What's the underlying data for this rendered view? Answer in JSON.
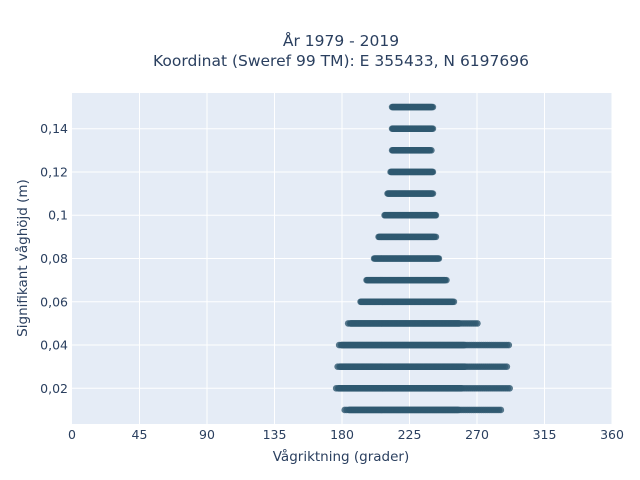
{
  "chart_data": {
    "type": "scatter",
    "title_lines": [
      "År 1979 - 2019",
      "Koordinat (Sweref 99 TM): E 355433, N 6197696"
    ],
    "xlabel": "Vågriktning (grader)",
    "ylabel": "Signifikant våghöjd (m)",
    "xlim": [
      0,
      360
    ],
    "ylim": [
      0.0035,
      0.1565
    ],
    "x_ticks": [
      0,
      45,
      90,
      135,
      180,
      225,
      270,
      315,
      360
    ],
    "x_tick_labels": [
      "0",
      "45",
      "90",
      "135",
      "180",
      "225",
      "270",
      "315",
      "360"
    ],
    "y_ticks": [
      0.02,
      0.04,
      0.06,
      0.08,
      0.1,
      0.12,
      0.14
    ],
    "y_tick_labels": [
      "0,02",
      "0,04",
      "0,06",
      "0,08",
      "0,1",
      "0,12",
      "0,14"
    ],
    "grid": true,
    "marker_color": "#2f5970",
    "plot_bgcolor": "#e5ecf6",
    "points_by_height": [
      {
        "height": 0.01,
        "dir_min": 181,
        "dir_max": 286,
        "dense_min": 185,
        "dense_max": 258
      },
      {
        "height": 0.02,
        "dir_min": 176,
        "dir_max": 293,
        "dense_min": 178,
        "dense_max": 260
      },
      {
        "height": 0.03,
        "dir_min": 177,
        "dir_max": 291,
        "dense_min": 179,
        "dense_max": 262
      },
      {
        "height": 0.04,
        "dir_min": 177,
        "dir_max": 292,
        "dense_min": 180,
        "dense_max": 262
      },
      {
        "height": 0.05,
        "dir_min": 184,
        "dir_max": 271,
        "dense_min": 186,
        "dense_max": 258
      },
      {
        "height": 0.06,
        "dir_min": 192,
        "dir_max": 255,
        "dense_min": 193,
        "dense_max": 254
      },
      {
        "height": 0.07,
        "dir_min": 196,
        "dir_max": 250,
        "dense_min": 197,
        "dense_max": 249
      },
      {
        "height": 0.08,
        "dir_min": 201,
        "dir_max": 245,
        "dense_min": 202,
        "dense_max": 244
      },
      {
        "height": 0.09,
        "dir_min": 204,
        "dir_max": 243,
        "dense_min": 205,
        "dense_max": 242
      },
      {
        "height": 0.1,
        "dir_min": 208,
        "dir_max": 243,
        "dense_min": 209,
        "dense_max": 242
      },
      {
        "height": 0.11,
        "dir_min": 210,
        "dir_max": 241,
        "dense_min": 211,
        "dense_max": 240
      },
      {
        "height": 0.12,
        "dir_min": 212,
        "dir_max": 241,
        "dense_min": 213,
        "dense_max": 240
      },
      {
        "height": 0.13,
        "dir_min": 213,
        "dir_max": 240,
        "dense_min": 214,
        "dense_max": 239
      },
      {
        "height": 0.14,
        "dir_min": 213,
        "dir_max": 241,
        "dense_min": 214,
        "dense_max": 240
      },
      {
        "height": 0.15,
        "dir_min": 213,
        "dir_max": 241,
        "dense_min": 214,
        "dense_max": 240
      }
    ]
  }
}
